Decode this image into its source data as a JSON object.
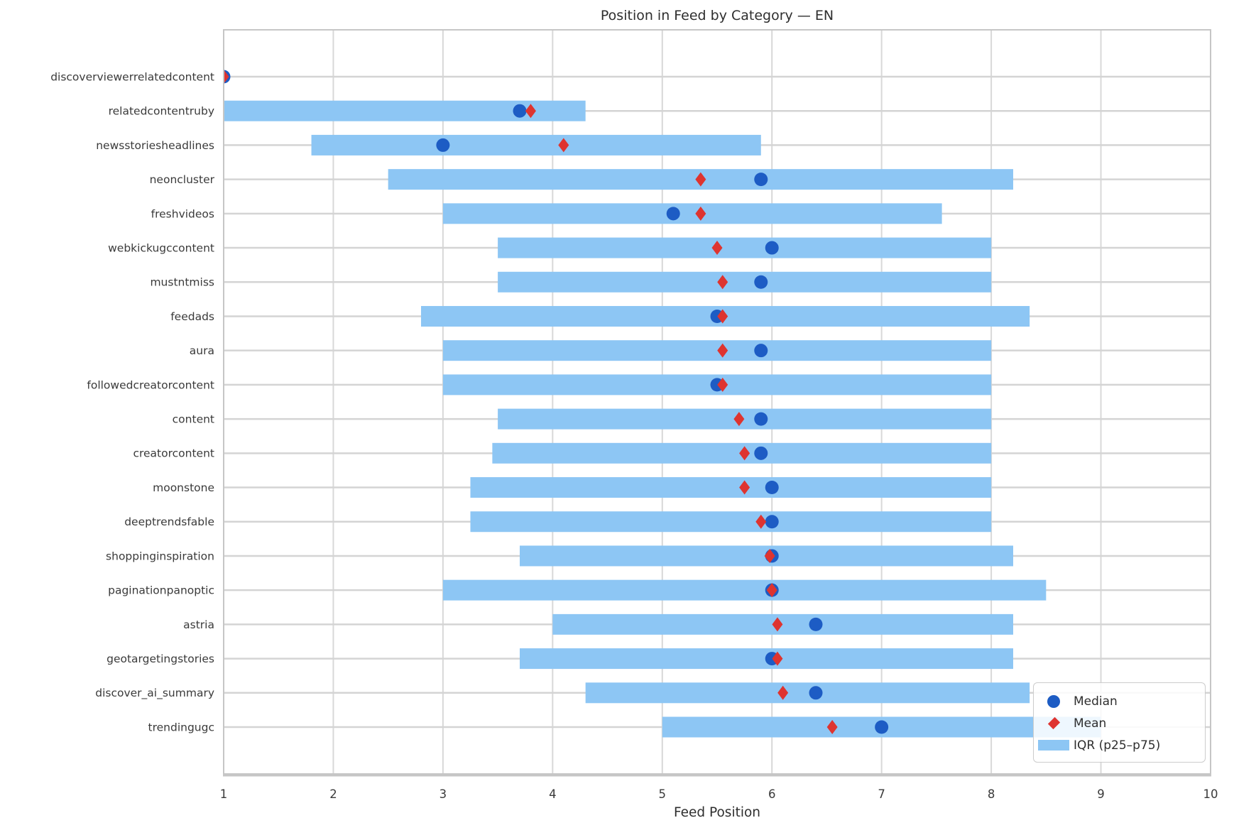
{
  "chart_data": {
    "type": "bar",
    "orientation": "horizontal",
    "title": "Position in Feed by Category — EN",
    "xlabel": "Feed Position",
    "ylabel": "",
    "xlim": [
      1,
      10
    ],
    "xticks": [
      1,
      2,
      3,
      4,
      5,
      6,
      7,
      8,
      9,
      10
    ],
    "grid": true,
    "legend": {
      "position": "lower right",
      "items": [
        {
          "label": "Median",
          "marker": "circle",
          "color": "#1d5cc4"
        },
        {
          "label": "Mean",
          "marker": "diamond",
          "color": "#de3430"
        },
        {
          "label": "IQR (p25–p75)",
          "marker": "patch",
          "color": "#8dc6f4"
        }
      ]
    },
    "categories": [
      "discoverviewerrelatedcontent",
      "relatedcontentruby",
      "newsstoriesheadlines",
      "neoncluster",
      "freshvideos",
      "webkickugccontent",
      "mustntmiss",
      "feedads",
      "aura",
      "followedcreatorcontent",
      "content",
      "creatorcontent",
      "moonstone",
      "deeptrendsfable",
      "shoppinginspiration",
      "paginationpanoptic",
      "astria",
      "geotargetingstories",
      "discover_ai_summary",
      "trendingugc"
    ],
    "series": [
      {
        "name": "p25",
        "values": [
          1.0,
          1.0,
          1.8,
          2.5,
          3.0,
          3.5,
          3.5,
          2.8,
          3.0,
          3.0,
          3.5,
          3.45,
          3.25,
          3.25,
          3.7,
          3.0,
          4.0,
          3.7,
          4.3,
          5.0
        ]
      },
      {
        "name": "p75",
        "values": [
          1.0,
          4.3,
          5.9,
          8.2,
          7.55,
          8.0,
          8.0,
          8.35,
          8.0,
          8.0,
          8.0,
          8.0,
          8.0,
          8.0,
          8.2,
          8.5,
          8.2,
          8.2,
          8.35,
          9.0
        ]
      },
      {
        "name": "median",
        "values": [
          1.0,
          3.7,
          3.0,
          5.9,
          5.1,
          6.0,
          5.9,
          5.5,
          5.9,
          5.5,
          5.9,
          5.9,
          6.0,
          6.0,
          6.0,
          6.0,
          6.4,
          6.0,
          6.4,
          7.0
        ]
      },
      {
        "name": "mean",
        "values": [
          1.0,
          3.8,
          4.1,
          5.35,
          5.35,
          5.5,
          5.55,
          5.55,
          5.55,
          5.55,
          5.7,
          5.75,
          5.75,
          5.9,
          5.98,
          6.0,
          6.05,
          6.05,
          6.1,
          6.55
        ]
      }
    ],
    "colors": {
      "bar": "#8dc6f4",
      "median": "#1d5cc4",
      "mean": "#de3430",
      "grid": "#d8d8d8",
      "row_line": "#d4d4d4",
      "spine": "#c6c6c6",
      "text": "#2e2e2e",
      "tick_text": "#3a3a3a"
    }
  }
}
